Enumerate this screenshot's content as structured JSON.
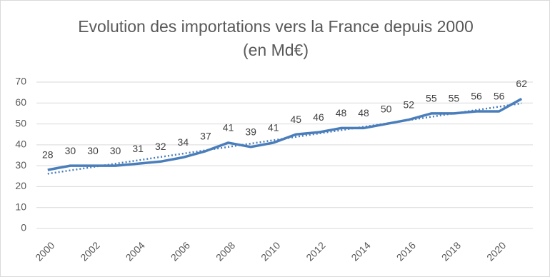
{
  "chart_data": {
    "type": "line",
    "title": "Evolution des importations vers la France depuis 2000 (en Md€)",
    "x": [
      2000,
      2001,
      2002,
      2003,
      2004,
      2005,
      2006,
      2007,
      2008,
      2009,
      2010,
      2011,
      2012,
      2013,
      2014,
      2015,
      2016,
      2017,
      2018,
      2019,
      2020,
      2021
    ],
    "series": [
      {
        "color": "#4a7ebb",
        "values": [
          28,
          30,
          30,
          30,
          31,
          32,
          34,
          37,
          41,
          39,
          41,
          45,
          46,
          48,
          48,
          50,
          52,
          55,
          55,
          56,
          56,
          62
        ]
      }
    ],
    "trendline": "linear",
    "data_labels": true,
    "xlim": [
      1999.5,
      2021.5
    ],
    "xticks": [
      2000,
      2002,
      2004,
      2006,
      2008,
      2010,
      2012,
      2014,
      2016,
      2018,
      2020
    ],
    "ylim": [
      0,
      70
    ],
    "yticks": [
      0,
      10,
      20,
      30,
      40,
      50,
      60,
      70
    ],
    "grid": true
  }
}
